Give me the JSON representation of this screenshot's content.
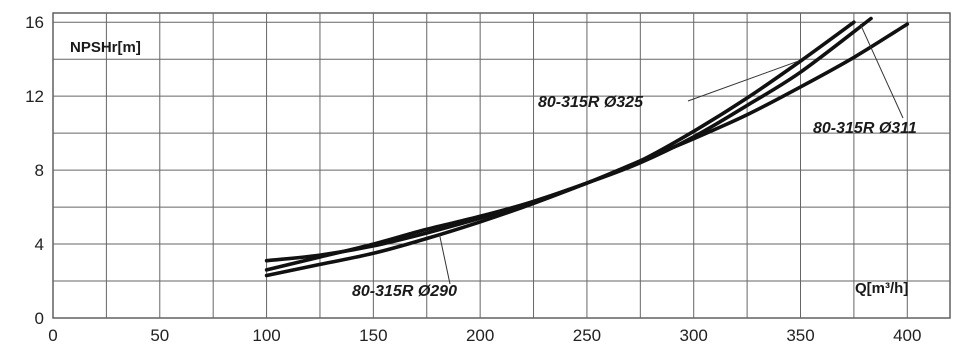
{
  "chart_data": {
    "type": "line",
    "ylabel": "NPSHr[m]",
    "xlabel": "Q[m³/h]",
    "xlim": [
      0,
      420
    ],
    "ylim": [
      0,
      16.5
    ],
    "x_ticks": [
      0,
      50,
      100,
      150,
      200,
      250,
      300,
      350,
      400
    ],
    "y_ticks": [
      0,
      4,
      8,
      12,
      16
    ],
    "grid": true,
    "series": [
      {
        "name": "80-315R Ø325",
        "x": [
          100,
          125,
          150,
          175,
          200,
          225,
          250,
          275,
          300,
          325,
          350,
          375
        ],
        "y": [
          2.6,
          3.3,
          4.0,
          4.8,
          5.5,
          6.3,
          7.3,
          8.5,
          10.1,
          11.9,
          13.9,
          16.0
        ]
      },
      {
        "name": "80-315R Ø311",
        "x": [
          100,
          125,
          150,
          175,
          200,
          225,
          250,
          275,
          300,
          325,
          350,
          383
        ],
        "y": [
          3.1,
          3.4,
          3.9,
          4.6,
          5.4,
          6.3,
          7.3,
          8.4,
          9.8,
          11.5,
          13.3,
          16.2
        ]
      },
      {
        "name": "80-315R Ø290",
        "x": [
          100,
          125,
          150,
          175,
          200,
          225,
          250,
          275,
          300,
          325,
          350,
          375,
          400
        ],
        "y": [
          2.3,
          2.9,
          3.5,
          4.3,
          5.2,
          6.2,
          7.3,
          8.5,
          9.7,
          11.0,
          12.5,
          14.1,
          15.9
        ]
      }
    ],
    "annotations": [
      {
        "text": "80-315R Ø325",
        "series": 0
      },
      {
        "text": "80-315R Ø311",
        "series": 1
      },
      {
        "text": "80-315R Ø290",
        "series": 2
      }
    ]
  }
}
